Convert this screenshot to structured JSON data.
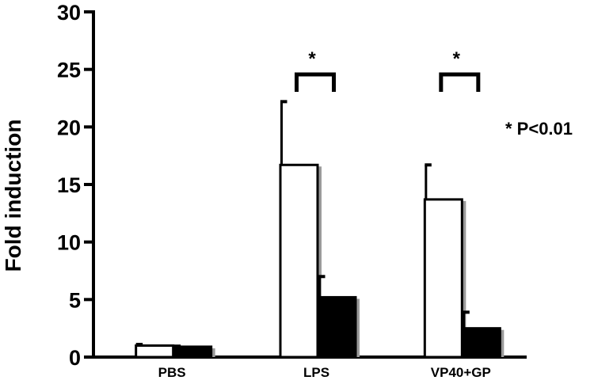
{
  "chart_data": {
    "type": "bar",
    "title": "",
    "xlabel": "",
    "ylabel": "Fold induction",
    "ylim": [
      0,
      30
    ],
    "yticks": [
      0,
      5,
      10,
      15,
      20,
      25,
      30
    ],
    "categories": [
      "PBS",
      "LPS",
      "VP40+GP"
    ],
    "series": [
      {
        "fill": "#ffffff",
        "values": [
          1.0,
          16.7,
          13.7
        ],
        "errors": [
          0.1,
          5.5,
          3.0
        ]
      },
      {
        "fill": "#000000",
        "values": [
          0.9,
          5.2,
          2.5
        ],
        "errors": [
          0.05,
          1.8,
          1.4
        ]
      }
    ],
    "significance": [
      {
        "category": "LPS",
        "mark": "*"
      },
      {
        "category": "VP40+GP",
        "mark": "*"
      }
    ],
    "annotation": "* P<0.01",
    "grid": false,
    "legend": "none"
  }
}
